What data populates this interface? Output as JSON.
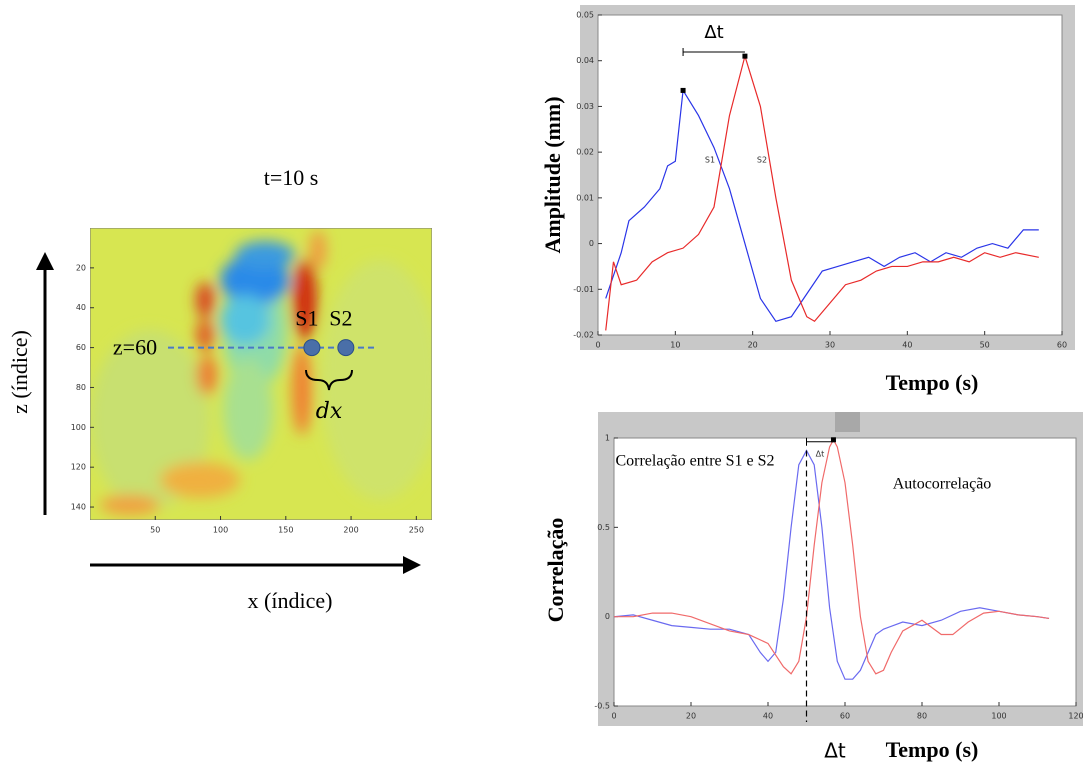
{
  "chart_data": [
    {
      "type": "heatmap",
      "title": "t=10 s",
      "xlabel": "x (índice)",
      "ylabel": "z (índice)",
      "xlim": [
        0,
        262
      ],
      "ylim": [
        0,
        146.5
      ],
      "y_inverted": true,
      "xticks": [
        50,
        100,
        150,
        200,
        250
      ],
      "yticks": [
        20,
        40,
        60,
        80,
        100,
        120,
        140
      ],
      "line": {
        "label": "z=60",
        "value": 60,
        "color": "#4a78c8"
      },
      "points": [
        {
          "label": "S1",
          "x": 170,
          "y": 60
        },
        {
          "label": "S2",
          "x": 196,
          "y": 60
        }
      ],
      "annotation": "dx"
    },
    {
      "type": "line",
      "xlabel": "Tempo (s)",
      "ylabel": "Amplitude (mm)",
      "annotation": "Δt",
      "xlim": [
        0,
        60
      ],
      "ylim": [
        -0.02,
        0.05
      ],
      "xticks": [
        0,
        10,
        20,
        30,
        40,
        50,
        60
      ],
      "yticks": [
        -0.02,
        -0.01,
        0,
        0.01,
        0.02,
        0.03,
        0.04,
        0.05
      ],
      "series": [
        {
          "name": "S1",
          "color": "#2a35e8",
          "x": [
            1,
            3,
            4,
            6,
            8,
            9,
            10,
            11,
            13,
            15,
            17,
            19,
            21,
            23,
            25,
            27,
            29,
            31,
            33,
            35,
            37,
            39,
            41,
            43,
            45,
            47,
            49,
            51,
            53,
            55,
            57
          ],
          "values": [
            -0.012,
            -0.002,
            0.005,
            0.008,
            0.012,
            0.017,
            0.018,
            0.0335,
            0.028,
            0.021,
            0.012,
            0.0,
            -0.012,
            -0.017,
            -0.016,
            -0.011,
            -0.006,
            -0.005,
            -0.004,
            -0.003,
            -0.005,
            -0.003,
            -0.002,
            -0.004,
            -0.002,
            -0.003,
            -0.001,
            0.0,
            -0.001,
            0.003,
            0.003
          ]
        },
        {
          "name": "S2",
          "color": "#e82a2a",
          "x": [
            1,
            2,
            3,
            5,
            7,
            9,
            11,
            13,
            15,
            17,
            19,
            21,
            23,
            25,
            27,
            28,
            30,
            32,
            34,
            36,
            38,
            40,
            42,
            44,
            46,
            48,
            50,
            52,
            54,
            57
          ],
          "values": [
            -0.019,
            -0.004,
            -0.009,
            -0.008,
            -0.004,
            -0.002,
            -0.001,
            0.002,
            0.008,
            0.028,
            0.041,
            0.03,
            0.01,
            -0.008,
            -0.016,
            -0.017,
            -0.013,
            -0.009,
            -0.008,
            -0.006,
            -0.005,
            -0.005,
            -0.004,
            -0.004,
            -0.003,
            -0.004,
            -0.002,
            -0.003,
            -0.002,
            -0.003
          ]
        }
      ]
    },
    {
      "type": "line",
      "xlabel": "Tempo (s)",
      "ylabel": "Correlação",
      "annotation": "Δt",
      "axis_annotation": "Δt",
      "xlim": [
        0,
        120
      ],
      "ylim": [
        -0.5,
        1
      ],
      "xticks": [
        0,
        20,
        40,
        60,
        80,
        100,
        120
      ],
      "yticks": [
        -0.5,
        0,
        0.5,
        1
      ],
      "series": [
        {
          "name": "Correlação entre S1 e S2",
          "color": "#6a6af0",
          "x": [
            0,
            5,
            10,
            15,
            20,
            25,
            30,
            35,
            38,
            40,
            42,
            44,
            46,
            48,
            50,
            52,
            54,
            56,
            58,
            60,
            62,
            64,
            66,
            68,
            70,
            75,
            80,
            85,
            90,
            95,
            100,
            105,
            110,
            113
          ],
          "values": [
            0,
            0.01,
            -0.02,
            -0.05,
            -0.06,
            -0.07,
            -0.07,
            -0.1,
            -0.2,
            -0.25,
            -0.2,
            0.1,
            0.5,
            0.85,
            0.93,
            0.85,
            0.5,
            0.05,
            -0.25,
            -0.35,
            -0.35,
            -0.3,
            -0.2,
            -0.1,
            -0.07,
            -0.03,
            -0.05,
            -0.02,
            0.03,
            0.05,
            0.03,
            0.01,
            0,
            -0.01
          ]
        },
        {
          "name": "Autocorrelação",
          "color": "#f06a6a",
          "x": [
            0,
            5,
            10,
            15,
            20,
            25,
            30,
            35,
            40,
            44,
            46,
            48,
            50,
            52,
            54,
            56,
            57,
            58,
            60,
            62,
            64,
            66,
            68,
            70,
            72,
            75,
            80,
            85,
            88,
            92,
            96,
            100,
            105,
            110,
            113
          ],
          "values": [
            0,
            0,
            0.02,
            0.02,
            0,
            -0.04,
            -0.08,
            -0.1,
            -0.15,
            -0.28,
            -0.32,
            -0.25,
            0,
            0.4,
            0.75,
            0.95,
            0.99,
            0.95,
            0.75,
            0.4,
            0,
            -0.25,
            -0.32,
            -0.3,
            -0.2,
            -0.08,
            -0.02,
            -0.1,
            -0.1,
            -0.03,
            0.02,
            0.03,
            0.01,
            0,
            -0.01
          ]
        }
      ]
    }
  ]
}
